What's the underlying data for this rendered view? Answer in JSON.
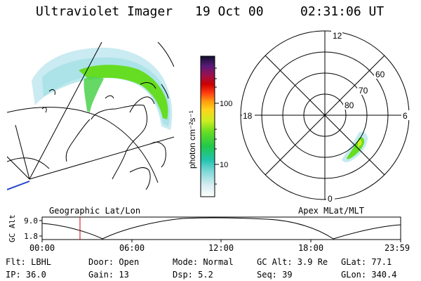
{
  "header": {
    "instrument": "Ultraviolet Imager",
    "date": "19 Oct 00",
    "time": "02:31:06 UT"
  },
  "colorbar": {
    "unit_label": "photon cm⁻²s⁻¹",
    "ticks": [
      "100",
      "10"
    ]
  },
  "polar_plot": {
    "mlt_labels": [
      "12",
      "18",
      "6",
      "0"
    ],
    "lat_labels": [
      "60",
      "70",
      "80"
    ]
  },
  "panel_labels": {
    "geo": "Geographic Lat/Lon",
    "apex": "Apex MLat/MLT"
  },
  "timeline": {
    "y_label": "GC Alt",
    "y_ticks": [
      "9.0",
      "1.8"
    ],
    "x_ticks": [
      "00:00",
      "06:00",
      "12:00",
      "18:00",
      "23:59"
    ]
  },
  "footer": {
    "flt": "Flt: LBHL",
    "door": "Door: Open",
    "mode": "Mode: Normal",
    "gc_alt": "GC Alt: 3.9 Re",
    "glat": "GLat:  77.1",
    "ip": "IP: 36.0",
    "gain": "Gain: 13",
    "dsp": "Dsp:      5.2",
    "seq": "Seq: 39",
    "glon": "GLon: 340.4"
  },
  "colors": {
    "marker": "#d00000",
    "auroral_core": "#66dd22",
    "auroral_halo": "#bfe8ee"
  }
}
